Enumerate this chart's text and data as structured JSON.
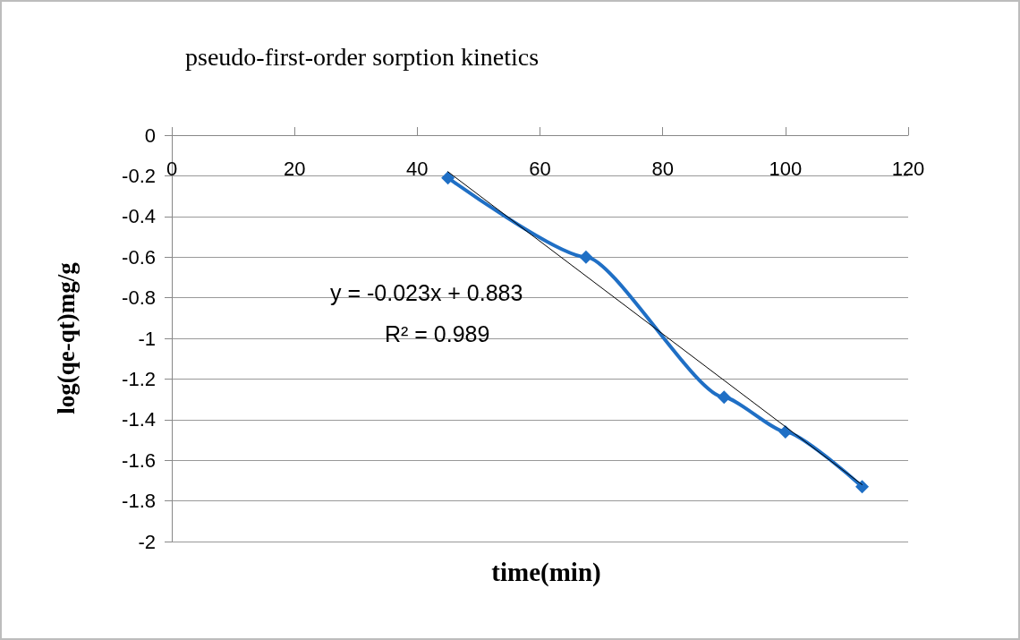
{
  "chart_data": {
    "type": "line",
    "title": "pseudo-first-order sorption kinetics",
    "xlabel": "time(min)",
    "ylabel": "log(qe-qt)mg/g",
    "x": [
      45,
      67.5,
      90,
      100,
      112.5
    ],
    "series": [
      {
        "color": "#1f6fc5",
        "values": [
          -0.21,
          -0.6,
          -1.29,
          -1.46,
          -1.73
        ],
        "marker": "diamond"
      },
      {
        "type": "line",
        "color": "#000000",
        "x": [
          45,
          112.5
        ],
        "values": [
          -0.18,
          -1.72
        ],
        "marker": "none"
      }
    ],
    "annotations": [
      "y = -0.023x + 0.883",
      "R² = 0.989"
    ],
    "xlim": [
      0,
      120
    ],
    "xticks": [
      0,
      20,
      40,
      60,
      80,
      100,
      120
    ],
    "ylim": [
      -2,
      0
    ],
    "yticks": [
      -2,
      -1.8,
      -1.6,
      -1.4,
      -1.2,
      -1,
      -0.8,
      -0.6,
      -0.4,
      -0.2,
      0
    ],
    "grid": "y"
  }
}
